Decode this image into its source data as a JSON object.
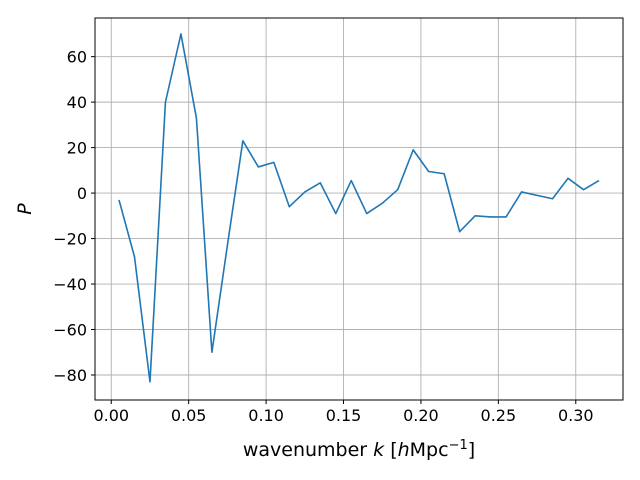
{
  "chart_data": {
    "type": "line",
    "xlabel_parts": {
      "pre": "wavenumber ",
      "var": "k",
      "mid": " [",
      "h": "h",
      "unit": "Mpc",
      "exp": "−1",
      "close": "]"
    },
    "ylabel": "P",
    "xlim": [
      -0.0105,
      0.3305
    ],
    "ylim": [
      -91,
      77
    ],
    "xticks": [
      0.0,
      0.05,
      0.1,
      0.15,
      0.2,
      0.25,
      0.3
    ],
    "xtick_labels": [
      "0.00",
      "0.05",
      "0.10",
      "0.15",
      "0.20",
      "0.25",
      "0.30"
    ],
    "yticks": [
      -80,
      -60,
      -40,
      -20,
      0,
      20,
      40,
      60
    ],
    "ytick_labels": [
      "−80",
      "−60",
      "−40",
      "−20",
      "0",
      "20",
      "40",
      "60"
    ],
    "grid": true,
    "line_color": "#1f77b4",
    "series": [
      {
        "x": [
          0.005,
          0.015,
          0.025,
          0.035,
          0.045,
          0.055,
          0.065,
          0.075,
          0.085,
          0.095,
          0.105,
          0.115,
          0.125,
          0.135,
          0.145,
          0.155,
          0.165,
          0.175,
          0.185,
          0.195,
          0.205,
          0.215,
          0.225,
          0.235,
          0.245,
          0.255,
          0.265,
          0.275,
          0.285,
          0.295,
          0.305,
          0.315
        ],
        "y": [
          -3,
          -28,
          -83,
          40,
          70,
          33,
          -70,
          -23,
          23,
          11.5,
          13.5,
          -6,
          0.5,
          4.5,
          -9,
          5.5,
          -9,
          -4.5,
          1.5,
          19,
          9.5,
          8.5,
          -17,
          -10,
          -10.5,
          -10.5,
          0.5,
          -1,
          -2.5,
          6.5,
          1.5,
          5.5
        ]
      }
    ]
  }
}
